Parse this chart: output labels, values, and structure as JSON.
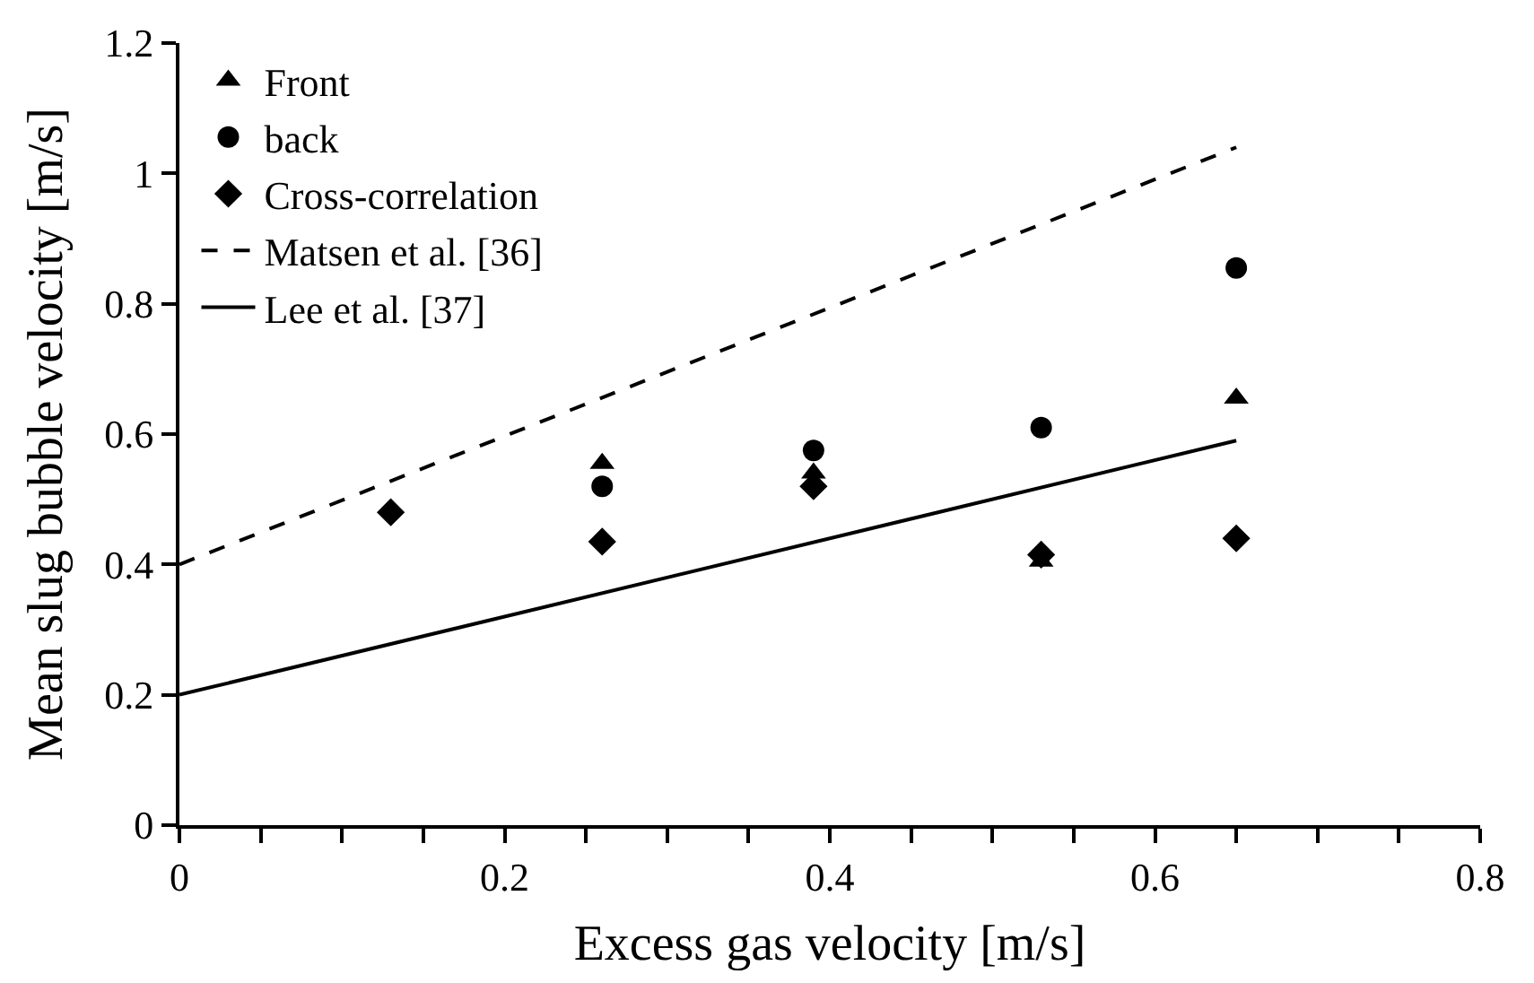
{
  "chart_data": {
    "type": "scatter",
    "xlabel": "Excess gas velocity [m/s]",
    "ylabel": "Mean slug bubble velocity [m/s]",
    "xlim": [
      0,
      0.8
    ],
    "xticks": [
      0,
      0.2,
      0.4,
      0.6,
      0.8
    ],
    "ylim": [
      0,
      1.2
    ],
    "yticks": [
      0,
      0.2,
      0.4,
      0.6,
      0.8,
      1,
      1.2
    ],
    "legend": "top left",
    "series": [
      {
        "name": "Front",
        "marker": "triangle",
        "color": "#000000",
        "x": [
          0.26,
          0.39,
          0.53,
          0.65
        ],
        "values": [
          0.555,
          0.54,
          0.405,
          0.655
        ]
      },
      {
        "name": "back",
        "marker": "circle",
        "color": "#000000",
        "x": [
          0.26,
          0.39,
          0.53,
          0.65
        ],
        "values": [
          0.52,
          0.575,
          0.61,
          0.855
        ]
      },
      {
        "name": "Cross-correlation",
        "marker": "diamond",
        "color": "#000000",
        "x": [
          0.13,
          0.26,
          0.39,
          0.53,
          0.65
        ],
        "values": [
          0.48,
          0.435,
          0.52,
          0.415,
          0.44
        ]
      },
      {
        "name": "Matsen et al. [36]",
        "type": "line",
        "line_style": "dashed",
        "color": "#000000",
        "x": [
          0,
          0.65
        ],
        "values": [
          0.4,
          1.04
        ]
      },
      {
        "name": "Lee et al. [37]",
        "type": "line",
        "line_style": "solid",
        "color": "#000000",
        "x": [
          0,
          0.65
        ],
        "values": [
          0.2,
          0.59
        ]
      }
    ]
  }
}
